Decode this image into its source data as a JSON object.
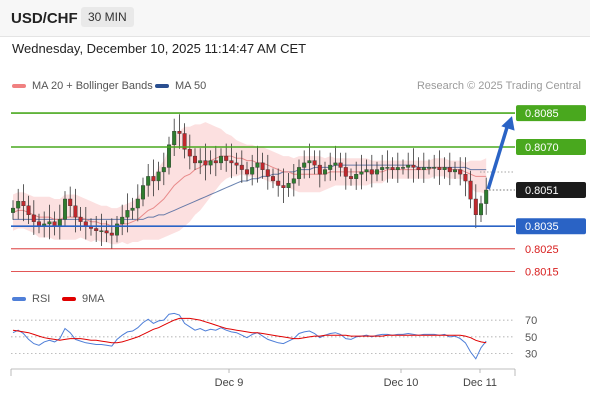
{
  "header": {
    "pair": "USD/CHF",
    "timeframe": "30 MIN",
    "timestamp": "Wednesday, December 10, 2025 11:14:47 AM CET"
  },
  "legend": {
    "ma20": "MA 20 + Bollinger Bands",
    "ma50": "MA 50",
    "copyright": "Research © 2025 Trading Central",
    "ma20_color": "#f08080",
    "ma50_color": "#2a4f90"
  },
  "rsi_legend": {
    "rsi": "RSI",
    "ma9": "9MA",
    "rsi_color": "#4f7fd8",
    "ma9_color": "#e00000"
  },
  "chart_data": [
    {
      "type": "candlestick",
      "instrument": "USD/CHF",
      "interval": "30 MIN",
      "ylim": [
        0.8009,
        0.8093
      ],
      "x_tick_labels": [
        "Dec 9",
        "Dec 10",
        "Dec 11"
      ],
      "current_price": "0.8051",
      "levels": [
        {
          "label": "0.8085",
          "value": 0.8085,
          "kind": "resistance",
          "color": "#49a81e"
        },
        {
          "label": "0.8070",
          "value": 0.807,
          "kind": "resistance",
          "color": "#49a81e"
        },
        {
          "label": "0.8035",
          "value": 0.8035,
          "kind": "pivot",
          "color": "#2a63c5"
        },
        {
          "label": "0.8025",
          "value": 0.8025,
          "kind": "support",
          "color": "#d81e1e"
        },
        {
          "label": "0.8015",
          "value": 0.8015,
          "kind": "support",
          "color": "#d81e1e"
        }
      ],
      "projection": {
        "from": 0.8051,
        "to": 0.8085,
        "direction": "up",
        "color": "#2a63c5"
      },
      "price_path": [
        0.8043,
        0.8046,
        0.8044,
        0.804,
        0.8037,
        0.8035,
        0.8036,
        0.8037,
        0.8035,
        0.8038,
        0.8047,
        0.8044,
        0.8039,
        0.8037,
        0.8035,
        0.8034,
        0.8033,
        0.8033,
        0.8032,
        0.8031,
        0.8036,
        0.8039,
        0.8042,
        0.8043,
        0.8047,
        0.8053,
        0.8057,
        0.8055,
        0.8059,
        0.8061,
        0.8071,
        0.8077,
        0.8076,
        0.8069,
        0.8066,
        0.8063,
        0.8064,
        0.8062,
        0.8064,
        0.8063,
        0.8066,
        0.8064,
        0.8063,
        0.8062,
        0.806,
        0.8058,
        0.8061,
        0.8063,
        0.806,
        0.8057,
        0.8055,
        0.8053,
        0.8052,
        0.8054,
        0.8056,
        0.8061,
        0.8063,
        0.8064,
        0.8062,
        0.8058,
        0.806,
        0.8062,
        0.8063,
        0.8061,
        0.8057,
        0.8056,
        0.8058,
        0.8059,
        0.806,
        0.8058,
        0.806,
        0.8061,
        0.8061,
        0.806,
        0.8061,
        0.8061,
        0.8062,
        0.8061,
        0.806,
        0.8061,
        0.8061,
        0.8061,
        0.806,
        0.8061,
        0.8059,
        0.806,
        0.8058,
        0.8055,
        0.8047,
        0.804,
        0.8045,
        0.8051
      ],
      "ma20": [
        0.8041,
        0.8042,
        0.8042,
        0.8041,
        0.804,
        0.8039,
        0.8039,
        0.8039,
        0.8038,
        0.8038,
        0.8039,
        0.8039,
        0.8039,
        0.8039,
        0.8038,
        0.8037,
        0.8037,
        0.8036,
        0.8036,
        0.8035,
        0.8035,
        0.8036,
        0.8036,
        0.8037,
        0.8038,
        0.804,
        0.8042,
        0.8043,
        0.8045,
        0.8047,
        0.805,
        0.8053,
        0.8055,
        0.8057,
        0.8058,
        0.806,
        0.8061,
        0.8063,
        0.8064,
        0.8065,
        0.8066,
        0.8066,
        0.8066,
        0.8065,
        0.8065,
        0.8064,
        0.8064,
        0.8063,
        0.8063,
        0.8062,
        0.8061,
        0.806,
        0.8059,
        0.8059,
        0.8058,
        0.8058,
        0.8058,
        0.8058,
        0.8058,
        0.8058,
        0.8058,
        0.8059,
        0.8059,
        0.8059,
        0.8059,
        0.8059,
        0.8059,
        0.8059,
        0.8059,
        0.8059,
        0.8059,
        0.8059,
        0.806,
        0.806,
        0.806,
        0.806,
        0.806,
        0.806,
        0.806,
        0.806,
        0.806,
        0.8061,
        0.8061,
        0.8061,
        0.806,
        0.806,
        0.806,
        0.8059,
        0.8058,
        0.8057,
        0.8057,
        0.8057
      ],
      "bb_width": [
        0.0008,
        0.0008,
        0.0008,
        0.0008,
        0.0008,
        0.0009,
        0.0009,
        0.0009,
        0.0009,
        0.0009,
        0.001,
        0.001,
        0.001,
        0.0009,
        0.0009,
        0.0009,
        0.0008,
        0.0008,
        0.0008,
        0.0008,
        0.0008,
        0.0008,
        0.0009,
        0.0009,
        0.001,
        0.0011,
        0.0013,
        0.0014,
        0.0016,
        0.0017,
        0.0019,
        0.0021,
        0.0022,
        0.0022,
        0.0021,
        0.002,
        0.0019,
        0.0018,
        0.0016,
        0.0014,
        0.0012,
        0.001,
        0.0009,
        0.0008,
        0.0007,
        0.0007,
        0.0007,
        0.0007,
        0.0007,
        0.0007,
        0.0007,
        0.0007,
        0.0007,
        0.0007,
        0.0007,
        0.0008,
        0.0008,
        0.0008,
        0.0008,
        0.0008,
        0.0007,
        0.0007,
        0.0006,
        0.0006,
        0.0006,
        0.0006,
        0.0006,
        0.0006,
        0.0006,
        0.0005,
        0.0005,
        0.0005,
        0.0004,
        0.0004,
        0.0004,
        0.0004,
        0.0004,
        0.0004,
        0.0004,
        0.0004,
        0.0004,
        0.0004,
        0.0004,
        0.0004,
        0.0004,
        0.0004,
        0.0004,
        0.0004,
        0.0006,
        0.0007,
        0.0007,
        0.0008
      ],
      "ma50": [
        0.8038,
        0.8038,
        0.8038,
        0.8038,
        0.8038,
        0.8038,
        0.8038,
        0.8038,
        0.8038,
        0.8038,
        0.8038,
        0.8038,
        0.8038,
        0.8038,
        0.8038,
        0.8038,
        0.8038,
        0.8038,
        0.8038,
        0.8038,
        0.8038,
        0.8038,
        0.8038,
        0.8038,
        0.8038,
        0.8038,
        0.8039,
        0.8039,
        0.804,
        0.804,
        0.8041,
        0.8042,
        0.8043,
        0.8044,
        0.8045,
        0.8046,
        0.8047,
        0.8048,
        0.8049,
        0.805,
        0.8051,
        0.8052,
        0.8053,
        0.8054,
        0.8055,
        0.8055,
        0.8056,
        0.8056,
        0.8057,
        0.8057,
        0.8058,
        0.8058,
        0.8059,
        0.8059,
        0.8059,
        0.806,
        0.806,
        0.806,
        0.8061,
        0.8061,
        0.8061,
        0.8061,
        0.8062,
        0.8062,
        0.8062,
        0.8062,
        0.8062,
        0.8062,
        0.8062,
        0.8062,
        0.8062,
        0.8062,
        0.8062,
        0.8062,
        0.8062,
        0.8062,
        0.8062,
        0.8062,
        0.8061,
        0.8061,
        0.8061,
        0.8061,
        0.8061,
        0.8061,
        0.8061,
        0.8061,
        0.8061,
        0.8061,
        0.806,
        0.806,
        0.806,
        0.806
      ]
    },
    {
      "type": "line",
      "name": "RSI",
      "ylim": [
        13,
        82
      ],
      "y_tick_labels": [
        "70",
        "50",
        "30"
      ],
      "y_ticks": [
        70,
        50,
        30
      ],
      "series": [
        {
          "name": "RSI",
          "color": "#4f7fd8",
          "values": [
            55,
            58,
            54,
            47,
            42,
            40,
            44,
            46,
            44,
            48,
            60,
            55,
            47,
            45,
            43,
            42,
            41,
            41,
            40,
            39,
            47,
            52,
            56,
            57,
            61,
            67,
            71,
            66,
            69,
            70,
            77,
            78,
            76,
            66,
            62,
            58,
            60,
            57,
            59,
            58,
            61,
            58,
            56,
            55,
            52,
            49,
            53,
            55,
            51,
            47,
            45,
            43,
            42,
            45,
            48,
            54,
            56,
            57,
            54,
            49,
            52,
            54,
            55,
            53,
            48,
            47,
            50,
            51,
            52,
            50,
            52,
            53,
            53,
            52,
            53,
            53,
            54,
            53,
            52,
            53,
            53,
            53,
            52,
            53,
            50,
            51,
            48,
            43,
            32,
            24,
            37,
            45
          ]
        },
        {
          "name": "9MA",
          "color": "#e00000",
          "values": [
            58,
            57,
            56,
            55,
            53,
            51,
            49,
            48,
            47,
            46,
            47,
            48,
            48,
            48,
            47,
            46,
            46,
            45,
            44,
            43,
            43,
            44,
            46,
            48,
            50,
            53,
            56,
            59,
            61,
            64,
            67,
            70,
            72,
            72,
            72,
            71,
            70,
            68,
            66,
            64,
            62,
            60,
            59,
            58,
            57,
            56,
            55,
            55,
            54,
            53,
            52,
            51,
            50,
            49,
            48,
            48,
            49,
            50,
            51,
            51,
            52,
            52,
            52,
            52,
            52,
            51,
            51,
            51,
            51,
            51,
            51,
            51,
            52,
            52,
            52,
            52,
            52,
            52,
            52,
            52,
            52,
            52,
            52,
            52,
            52,
            52,
            52,
            51,
            49,
            46,
            44,
            43
          ]
        }
      ]
    }
  ]
}
